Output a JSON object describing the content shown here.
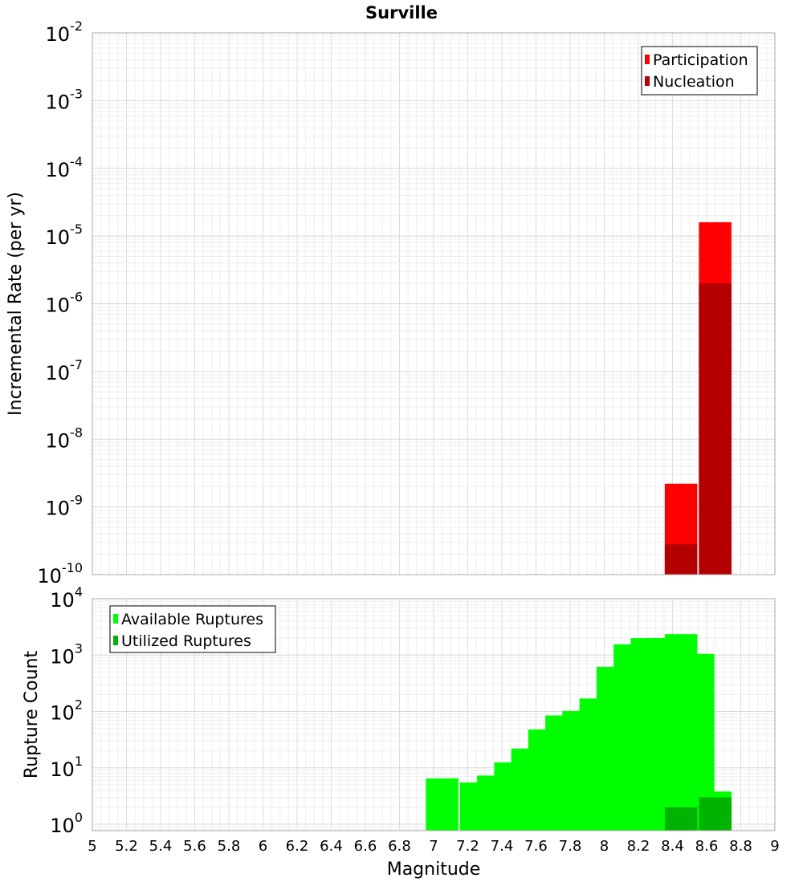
{
  "title": "Surville",
  "xlabel": "Magnitude",
  "chart_data": [
    {
      "type": "bar",
      "title": "Surville",
      "ylabel": "Incremental Rate (per yr)",
      "yscale": "log",
      "ylim": [
        1e-10,
        0.01
      ],
      "y_tick_exponents": [
        "-10",
        "-9",
        "-8",
        "-7",
        "-6",
        "-5",
        "-4",
        "-3",
        "-2"
      ],
      "xlim": [
        5,
        9
      ],
      "grid": true,
      "legend_position": "top-right",
      "overlay": true,
      "series": [
        {
          "name": "Participation",
          "color": "#ff0000",
          "points": [
            {
              "x": 8.45,
              "y": 2.2e-09
            },
            {
              "x": 8.65,
              "y": 1.6e-05
            }
          ]
        },
        {
          "name": "Nucleation",
          "color": "#b30000",
          "points": [
            {
              "x": 8.45,
              "y": 2.8e-10
            },
            {
              "x": 8.65,
              "y": 2e-06
            }
          ]
        }
      ]
    },
    {
      "type": "bar",
      "ylabel": "Rupture Count",
      "xlabel": "Magnitude",
      "yscale": "log",
      "ylim": [
        0.77,
        10000
      ],
      "y_tick_exponents": [
        "0",
        "1",
        "2",
        "3",
        "4"
      ],
      "xlim": [
        5,
        9
      ],
      "x_ticks": [
        "5",
        "5.2",
        "5.4",
        "5.6",
        "5.8",
        "6",
        "6.2",
        "6.4",
        "6.6",
        "6.8",
        "7",
        "7.2",
        "7.4",
        "7.6",
        "7.8",
        "8",
        "8.2",
        "8.4",
        "8.6",
        "8.8",
        "9"
      ],
      "grid": true,
      "legend_position": "top-left",
      "overlay": true,
      "series": [
        {
          "name": "Available Ruptures",
          "color": "#00ff00",
          "points": [
            {
              "x": 7.05,
              "y": 6.5
            },
            {
              "x": 7.25,
              "y": 5.5
            },
            {
              "x": 7.35,
              "y": 7.3
            },
            {
              "x": 7.45,
              "y": 12.5
            },
            {
              "x": 7.55,
              "y": 22
            },
            {
              "x": 7.65,
              "y": 48
            },
            {
              "x": 7.75,
              "y": 85
            },
            {
              "x": 7.85,
              "y": 102
            },
            {
              "x": 7.95,
              "y": 170
            },
            {
              "x": 8.05,
              "y": 620
            },
            {
              "x": 8.15,
              "y": 1550
            },
            {
              "x": 8.25,
              "y": 2000
            },
            {
              "x": 8.35,
              "y": 2000
            },
            {
              "x": 8.45,
              "y": 2350
            },
            {
              "x": 8.55,
              "y": 1050
            },
            {
              "x": 8.65,
              "y": 3.8
            }
          ]
        },
        {
          "name": "Utilized Ruptures",
          "color": "#00b300",
          "points": [
            {
              "x": 8.45,
              "y": 2
            },
            {
              "x": 8.65,
              "y": 3
            }
          ]
        }
      ]
    }
  ]
}
